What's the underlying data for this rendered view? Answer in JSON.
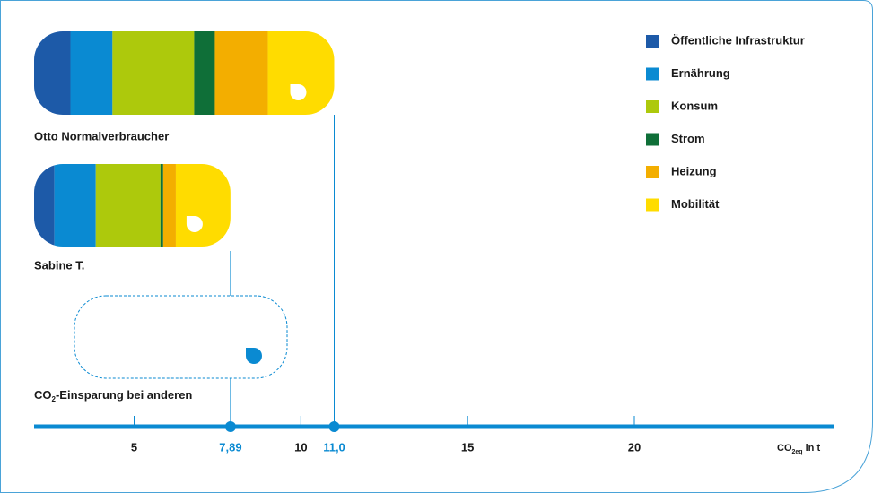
{
  "chart_data": {
    "type": "bar",
    "orientation": "horizontal",
    "stacked": true,
    "categories": [
      "Otto Normalverbraucher",
      "Sabine T."
    ],
    "series": [
      {
        "name": "Öffentliche Infrastruktur",
        "color": "#1d5aa8",
        "values": [
          3.09,
          2.61
        ]
      },
      {
        "name": "Ernährung",
        "color": "#0a8ad2",
        "values": [
          1.26,
          1.24
        ]
      },
      {
        "name": "Konsum",
        "color": "#adc90c",
        "values": [
          2.45,
          1.94
        ]
      },
      {
        "name": "Strom",
        "color": "#0f6f38",
        "values": [
          0.62,
          0.08
        ]
      },
      {
        "name": "Heizung",
        "color": "#f3ae00",
        "values": [
          1.59,
          0.38
        ]
      },
      {
        "name": "Mobilität",
        "color": "#ffdc00",
        "values": [
          1.99,
          1.64
        ]
      }
    ],
    "savings_label_parts": [
      "CO",
      "2",
      "-Einsparung bei anderen"
    ],
    "markers": [
      {
        "value": 7.89,
        "label": "7,89"
      },
      {
        "value": 11.0,
        "label": "11,0"
      }
    ],
    "xlim": [
      2,
      26
    ],
    "xticks": [
      5,
      10,
      15,
      20
    ],
    "x_label_parts": [
      "CO",
      "2eq",
      " in t"
    ],
    "legend": "top-right",
    "axis_color": "#0a8ad2"
  }
}
